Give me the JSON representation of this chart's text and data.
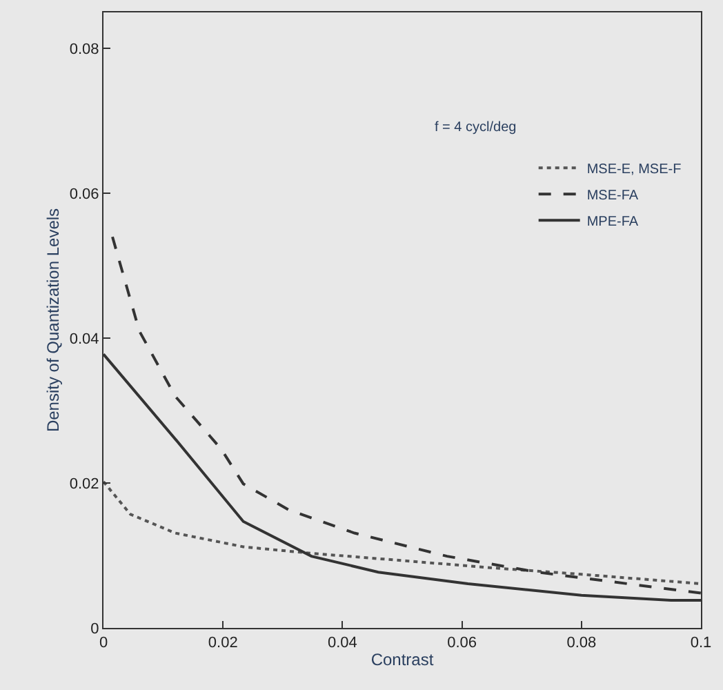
{
  "chart_data": {
    "type": "line",
    "xlabel": "Contrast",
    "ylabel": "Density of Quantization Levels",
    "annotations": [
      "f = 4 cycl/deg"
    ],
    "xlim": [
      0,
      0.1
    ],
    "xticks": [
      0,
      0.02,
      0.04,
      0.06,
      0.08,
      {
        "value": 0.1,
        "label": "0.1"
      }
    ],
    "ylim": [
      0,
      0.085
    ],
    "yticks": [
      0,
      0.02,
      0.04,
      0.06,
      0.08
    ],
    "grid": false,
    "legend": "top right",
    "series": [
      {
        "name": "MSE-E, MSE-F",
        "color": "#555555",
        "line_style": "dotted",
        "x": [
          0,
          0.0045,
          0.012,
          0.0234,
          0.0348,
          0.05,
          0.065,
          0.08,
          0.1
        ],
        "values": [
          0.0202,
          0.0157,
          0.0131,
          0.0112,
          0.0103,
          0.0093,
          0.0083,
          0.0074,
          0.0061
        ]
      },
      {
        "name": "MSE-FA",
        "color": "#333333",
        "line_style": "dashed",
        "x": [
          0.0015,
          0.006,
          0.012,
          0.0197,
          0.0234,
          0.031,
          0.042,
          0.0575,
          0.0726,
          0.0877,
          0.1
        ],
        "values": [
          0.054,
          0.041,
          0.032,
          0.0247,
          0.0199,
          0.0163,
          0.0131,
          0.0099,
          0.0077,
          0.0061,
          0.0048
        ]
      },
      {
        "name": "MPE-FA",
        "color": "#333333",
        "line_style": "solid",
        "x": [
          0,
          0.0121,
          0.0234,
          0.0348,
          0.046,
          0.061,
          0.08,
          0.095,
          0.1
        ],
        "values": [
          0.0378,
          0.026,
          0.0147,
          0.0099,
          0.0077,
          0.0061,
          0.0045,
          0.0038,
          0.0038
        ]
      }
    ]
  }
}
